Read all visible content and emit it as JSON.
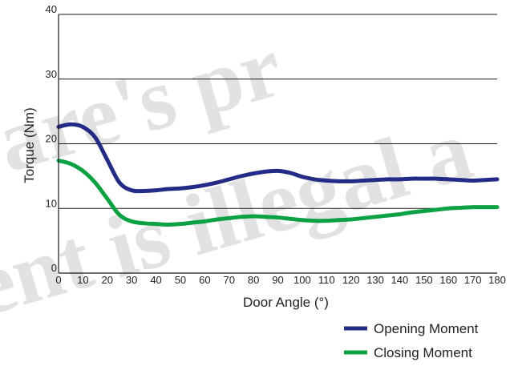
{
  "chart_data": {
    "type": "line",
    "title": "",
    "xlabel": "Door Angle (°)",
    "ylabel": "Torque (Nm)",
    "xlim": [
      0,
      180
    ],
    "ylim": [
      0,
      40
    ],
    "x_ticks": [
      "0",
      "10",
      "20",
      "30",
      "40",
      "50",
      "60",
      "70",
      "80",
      "90",
      "100",
      "110",
      "120",
      "130",
      "140",
      "150",
      "160",
      "170",
      "180"
    ],
    "y_ticks": [
      "0",
      "10",
      "20",
      "30",
      "40"
    ],
    "grid": "horizontal",
    "legend": "bottom-right",
    "series": [
      {
        "name": "Opening Moment",
        "color": "#232b86",
        "x": [
          0,
          5,
          10,
          15,
          20,
          25,
          30,
          35,
          40,
          45,
          50,
          55,
          60,
          65,
          70,
          75,
          80,
          85,
          90,
          95,
          100,
          105,
          110,
          115,
          120,
          125,
          130,
          135,
          140,
          145,
          150,
          155,
          160,
          165,
          170,
          175,
          180
        ],
        "values": [
          22.6,
          23.0,
          22.6,
          21.0,
          17.5,
          14.0,
          12.8,
          12.7,
          12.8,
          13.0,
          13.1,
          13.3,
          13.6,
          14.0,
          14.5,
          15.0,
          15.4,
          15.7,
          15.8,
          15.5,
          14.9,
          14.5,
          14.3,
          14.2,
          14.2,
          14.3,
          14.4,
          14.5,
          14.5,
          14.6,
          14.6,
          14.6,
          14.5,
          14.4,
          14.3,
          14.4,
          14.5
        ]
      },
      {
        "name": "Closing Moment",
        "color": "#0ca244",
        "x": [
          0,
          5,
          10,
          15,
          20,
          25,
          30,
          35,
          40,
          45,
          50,
          55,
          60,
          65,
          70,
          75,
          80,
          85,
          90,
          95,
          100,
          105,
          110,
          115,
          120,
          125,
          130,
          135,
          140,
          145,
          150,
          155,
          160,
          165,
          170,
          175,
          180
        ],
        "values": [
          17.4,
          16.9,
          15.8,
          14.0,
          11.5,
          9.0,
          8.0,
          7.7,
          7.6,
          7.5,
          7.6,
          7.8,
          8.0,
          8.3,
          8.5,
          8.7,
          8.8,
          8.7,
          8.6,
          8.4,
          8.2,
          8.1,
          8.1,
          8.2,
          8.3,
          8.5,
          8.7,
          8.9,
          9.1,
          9.4,
          9.6,
          9.8,
          10.0,
          10.1,
          10.2,
          10.2,
          10.2
        ]
      }
    ]
  },
  "watermark": [
    "are's pr",
    "ent is illegal a"
  ]
}
